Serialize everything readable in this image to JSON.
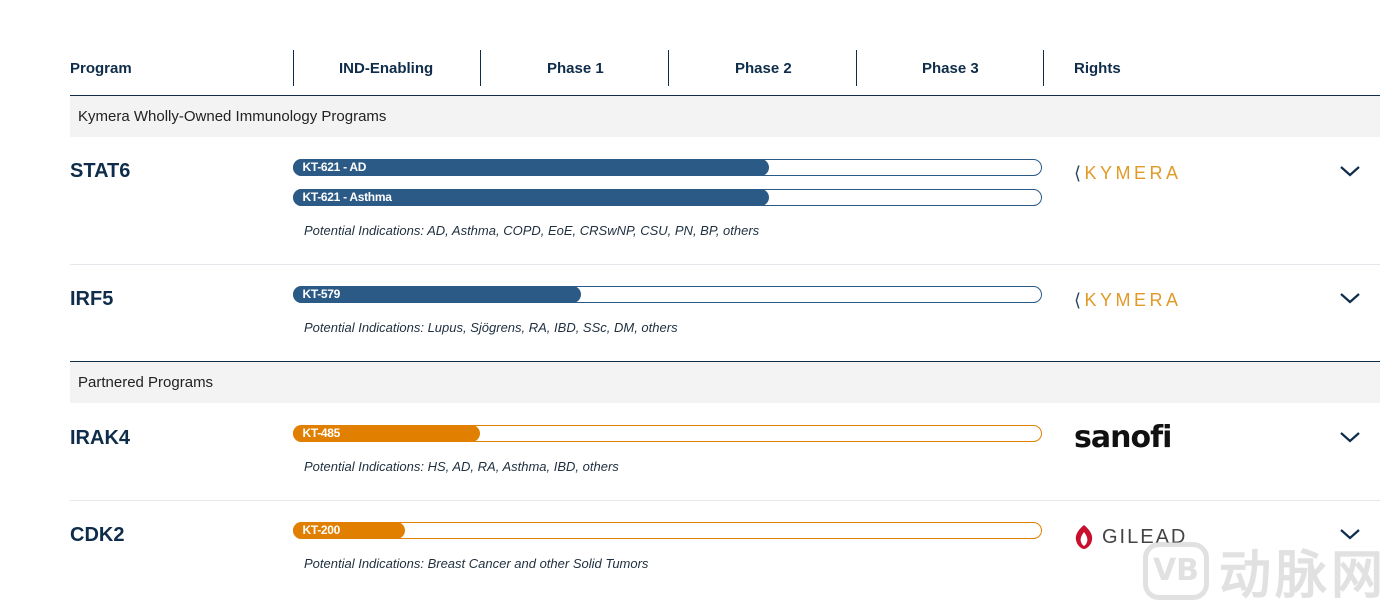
{
  "header": {
    "program": "Program",
    "ind_enabling": "IND-Enabling",
    "phase1": "Phase 1",
    "phase2": "Phase 2",
    "phase3": "Phase 3",
    "rights": "Rights"
  },
  "sections": [
    {
      "title": "Kymera Wholly-Owned Immunology Programs",
      "programs": [
        {
          "name": "STAT6",
          "bars": [
            {
              "label": "KT-621 - AD",
              "progress": 0.635,
              "color": "#2b5a86"
            },
            {
              "label": "KT-621 - Asthma",
              "progress": 0.635,
              "color": "#2b5a86"
            }
          ],
          "indications": "Potential Indications: AD, Asthma, COPD, EoE, CRSwNP, CSU, PN, BP, others",
          "rights": "KYMERA"
        },
        {
          "name": "IRF5",
          "bars": [
            {
              "label": "KT-579",
              "progress": 0.385,
              "color": "#2b5a86"
            }
          ],
          "indications": "Potential Indications: Lupus, Sjögrens, RA, IBD, SSc, DM, others",
          "rights": "KYMERA"
        }
      ]
    },
    {
      "title": "Partnered Programs",
      "programs": [
        {
          "name": "IRAK4",
          "bars": [
            {
              "label": "KT-485",
              "progress": 0.25,
              "color": "#e07f00"
            }
          ],
          "indications": "Potential Indications: HS, AD, RA, Asthma, IBD, others",
          "rights": "sanofi"
        },
        {
          "name": "CDK2",
          "bars": [
            {
              "label": "KT-200",
              "progress": 0.15,
              "color": "#e07f00"
            }
          ],
          "indications": "Potential Indications: Breast Cancer and other Solid Tumors",
          "rights": "GILEAD"
        }
      ]
    }
  ],
  "icons": {
    "expand": "chevron-down-icon",
    "gilead_mark": "gilead-flame-icon"
  },
  "watermark": {
    "badge": "VB",
    "text": "动脉网"
  }
}
